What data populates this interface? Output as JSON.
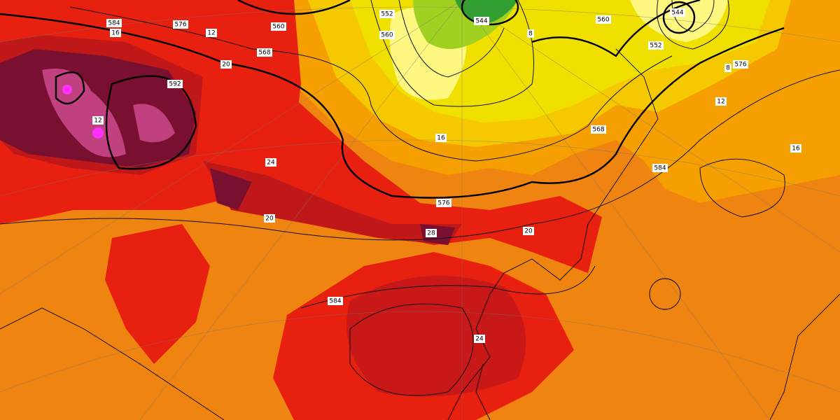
{
  "contour_labels": [
    "584",
    "576",
    "560",
    "568",
    "592",
    "552",
    "560",
    "544",
    "560",
    "544",
    "552",
    "576",
    "568",
    "584",
    "576",
    "584",
    "12",
    "16",
    "16",
    "20",
    "24",
    "28",
    "20",
    "24",
    "12",
    "8",
    "8",
    "12",
    "16",
    "20"
  ]
}
